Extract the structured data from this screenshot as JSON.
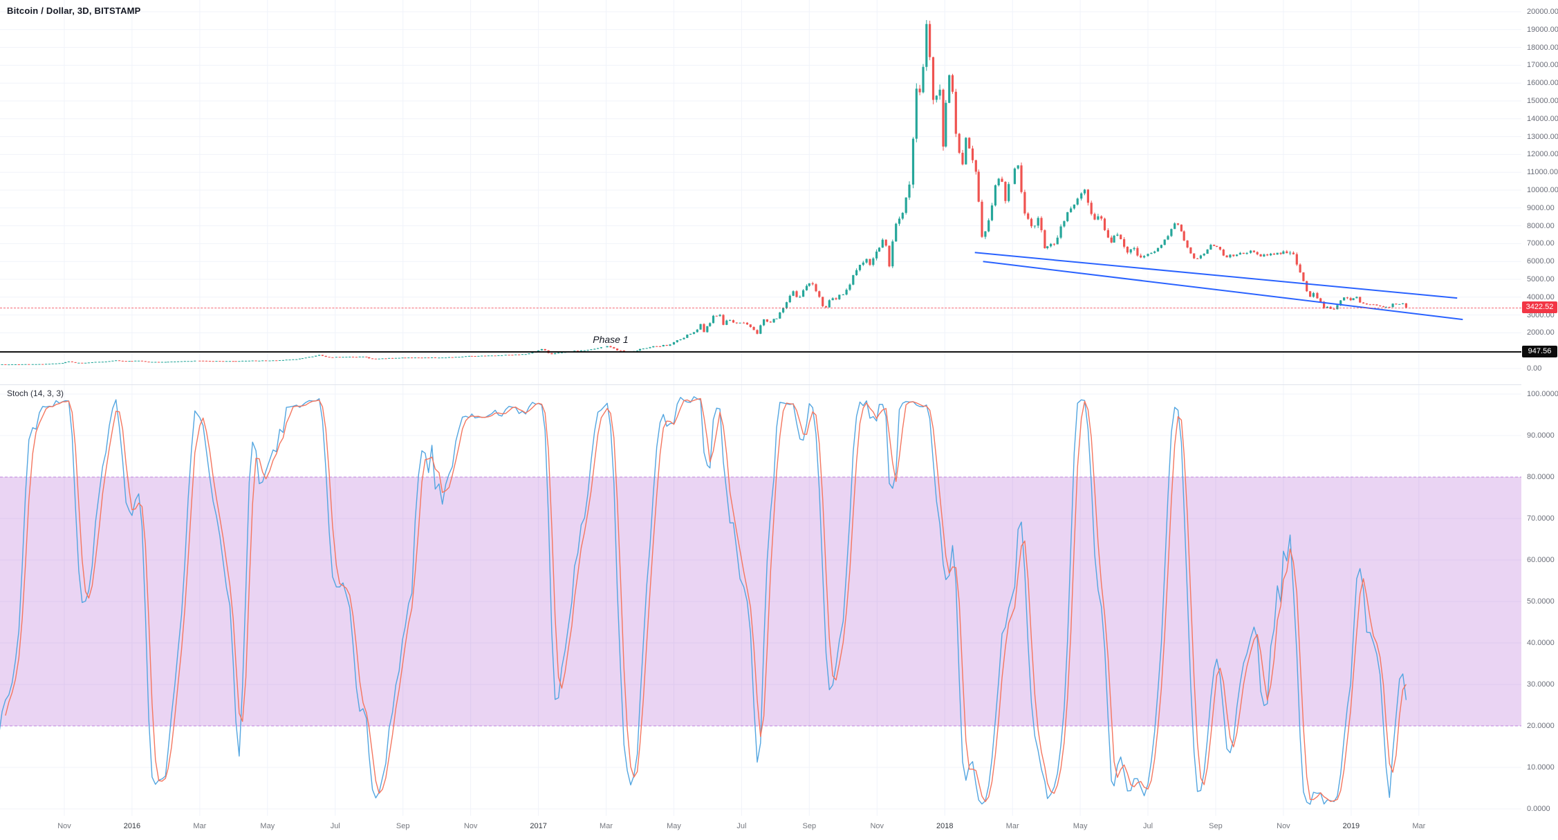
{
  "header": {
    "symbol_title": "Bitcoin / Dollar, 3D, BITSTAMP"
  },
  "indicator_pane": {
    "label": "Stoch (14, 3, 3)"
  },
  "annotations": {
    "phase_label": "Phase 1",
    "phase_position_date": "2017-03-05",
    "level_line": {
      "price": 947.56,
      "label": "947.56",
      "color": "#0c0c0c"
    },
    "last_price": {
      "value": 3422.52,
      "label": "3422.52",
      "color": "#f23645"
    }
  },
  "colors": {
    "up": "#26a69a",
    "down": "#ef5350",
    "trendline": "#2962ff",
    "stoch_k": "#52a5e0",
    "stoch_d": "#f4765f",
    "band_fill": "rgba(160,60,200,0.22)",
    "band_edge": "rgba(160,60,200,0.55)",
    "grid": "#f0f3fa",
    "axis_text": "#6a6d78",
    "axis_border": "#e0e3eb"
  },
  "price_axis": {
    "ticks": [
      {
        "v": 20000,
        "label": "20000.00"
      },
      {
        "v": 19000,
        "label": "19000.00"
      },
      {
        "v": 18000,
        "label": "18000.00"
      },
      {
        "v": 17000,
        "label": "17000.00"
      },
      {
        "v": 16000,
        "label": "16000.00"
      },
      {
        "v": 15000,
        "label": "15000.00"
      },
      {
        "v": 14000,
        "label": "14000.00"
      },
      {
        "v": 13000,
        "label": "13000.00"
      },
      {
        "v": 12000,
        "label": "12000.00"
      },
      {
        "v": 11000,
        "label": "11000.00"
      },
      {
        "v": 10000,
        "label": "10000.00"
      },
      {
        "v": 9000,
        "label": "9000.00"
      },
      {
        "v": 8000,
        "label": "8000.00"
      },
      {
        "v": 7000,
        "label": "7000.00"
      },
      {
        "v": 6000,
        "label": "6000.00"
      },
      {
        "v": 5000,
        "label": "5000.00"
      },
      {
        "v": 4000,
        "label": "4000.00"
      },
      {
        "v": 3000,
        "label": "3000.00"
      },
      {
        "v": 2000,
        "label": "2000.00"
      },
      {
        "v": 0,
        "label": "0.00"
      }
    ]
  },
  "stoch_axis": {
    "ticks": [
      {
        "v": 100,
        "label": "100.0000"
      },
      {
        "v": 90,
        "label": "90.0000"
      },
      {
        "v": 80,
        "label": "80.0000"
      },
      {
        "v": 70,
        "label": "70.0000"
      },
      {
        "v": 60,
        "label": "60.0000"
      },
      {
        "v": 50,
        "label": "50.0000"
      },
      {
        "v": 40,
        "label": "40.0000"
      },
      {
        "v": 30,
        "label": "30.0000"
      },
      {
        "v": 20,
        "label": "20.0000"
      },
      {
        "v": 10,
        "label": "10.0000"
      },
      {
        "v": 0,
        "label": "0.0000"
      }
    ]
  },
  "time_axis": {
    "ticks": [
      {
        "label": "Nov",
        "date": "2015-11-01",
        "year": false
      },
      {
        "label": "2016",
        "date": "2016-01-01",
        "year": true
      },
      {
        "label": "Mar",
        "date": "2016-03-01",
        "year": false
      },
      {
        "label": "May",
        "date": "2016-05-01",
        "year": false
      },
      {
        "label": "Jul",
        "date": "2016-07-01",
        "year": false
      },
      {
        "label": "Sep",
        "date": "2016-09-01",
        "year": false
      },
      {
        "label": "Nov",
        "date": "2016-11-01",
        "year": false
      },
      {
        "label": "2017",
        "date": "2017-01-01",
        "year": true
      },
      {
        "label": "Mar",
        "date": "2017-03-01",
        "year": false
      },
      {
        "label": "May",
        "date": "2017-05-01",
        "year": false
      },
      {
        "label": "Jul",
        "date": "2017-07-01",
        "year": false
      },
      {
        "label": "Sep",
        "date": "2017-09-01",
        "year": false
      },
      {
        "label": "Nov",
        "date": "2017-11-01",
        "year": false
      },
      {
        "label": "2018",
        "date": "2018-01-01",
        "year": true
      },
      {
        "label": "Mar",
        "date": "2018-03-01",
        "year": false
      },
      {
        "label": "May",
        "date": "2018-05-01",
        "year": false
      },
      {
        "label": "Jul",
        "date": "2018-07-01",
        "year": false
      },
      {
        "label": "Sep",
        "date": "2018-09-01",
        "year": false
      },
      {
        "label": "Nov",
        "date": "2018-11-01",
        "year": false
      },
      {
        "label": "2019",
        "date": "2019-01-01",
        "year": true
      },
      {
        "label": "Mar",
        "date": "2019-03-01",
        "year": false
      }
    ]
  },
  "chart_data": {
    "type": "candlestick",
    "title": "Bitcoin / Dollar, 3D, BITSTAMP",
    "interval": "3D",
    "exchange": "BITSTAMP",
    "price_range": [
      0,
      20000
    ],
    "last_price": 3422.52,
    "level_line_price": 947.56,
    "bar_interval_days": 3,
    "series_start": "2015-07-20",
    "series_end": "2019-02-20",
    "indicator": {
      "name": "Stochastic",
      "params": [
        14,
        3,
        3
      ],
      "range": [
        0,
        100
      ],
      "band": [
        20,
        80
      ],
      "legend": "Stoch (14, 3, 3)"
    },
    "stoch_band": [
      20,
      80
    ],
    "trendlines": [
      {
        "from": [
          "2018-01-28",
          6500
        ],
        "to": [
          "2019-04-05",
          3950
        ]
      },
      {
        "from": [
          "2018-02-05",
          6000
        ],
        "to": [
          "2019-04-10",
          2750
        ]
      }
    ],
    "price_anchors": [
      [
        "2015-07-20",
        278
      ],
      [
        "2015-08-02",
        282
      ],
      [
        "2015-08-18",
        225
      ],
      [
        "2015-08-25",
        211
      ],
      [
        "2015-09-05",
        230
      ],
      [
        "2015-09-21",
        232
      ],
      [
        "2015-10-01",
        240
      ],
      [
        "2015-10-14",
        253
      ],
      [
        "2015-10-26",
        285
      ],
      [
        "2015-11-01",
        325
      ],
      [
        "2015-11-04",
        400
      ],
      [
        "2015-11-11",
        315
      ],
      [
        "2015-11-20",
        322
      ],
      [
        "2015-11-30",
        370
      ],
      [
        "2015-12-08",
        392
      ],
      [
        "2015-12-16",
        455
      ],
      [
        "2015-12-24",
        415
      ],
      [
        "2016-01-07",
        432
      ],
      [
        "2016-01-16",
        368
      ],
      [
        "2016-01-31",
        372
      ],
      [
        "2016-02-14",
        404
      ],
      [
        "2016-02-29",
        435
      ],
      [
        "2016-03-15",
        416
      ],
      [
        "2016-04-01",
        417
      ],
      [
        "2016-04-20",
        442
      ],
      [
        "2016-05-10",
        452
      ],
      [
        "2016-05-28",
        528
      ],
      [
        "2016-06-13",
        700
      ],
      [
        "2016-06-17",
        758
      ],
      [
        "2016-06-24",
        628
      ],
      [
        "2016-07-10",
        652
      ],
      [
        "2016-07-28",
        655
      ],
      [
        "2016-08-02",
        547
      ],
      [
        "2016-08-15",
        570
      ],
      [
        "2016-09-01",
        605
      ],
      [
        "2016-09-20",
        609
      ],
      [
        "2016-10-10",
        618
      ],
      [
        "2016-10-28",
        688
      ],
      [
        "2016-11-15",
        712
      ],
      [
        "2016-12-01",
        754
      ],
      [
        "2016-12-20",
        795
      ],
      [
        "2016-12-31",
        958
      ],
      [
        "2017-01-04",
        1120
      ],
      [
        "2017-01-12",
        792
      ],
      [
        "2017-01-20",
        895
      ],
      [
        "2017-02-01",
        962
      ],
      [
        "2017-02-20",
        1058
      ],
      [
        "2017-03-03",
        1268
      ],
      [
        "2017-03-12",
        1015
      ],
      [
        "2017-03-18",
        952
      ],
      [
        "2017-03-25",
        968
      ],
      [
        "2017-04-10",
        1195
      ],
      [
        "2017-04-28",
        1330
      ],
      [
        "2017-05-10",
        1762
      ],
      [
        "2017-05-22",
        2150
      ],
      [
        "2017-05-25",
        2480
      ],
      [
        "2017-05-28",
        2060
      ],
      [
        "2017-06-06",
        2868
      ],
      [
        "2017-06-12",
        2958
      ],
      [
        "2017-06-15",
        2455
      ],
      [
        "2017-06-20",
        2748
      ],
      [
        "2017-06-27",
        2552
      ],
      [
        "2017-07-05",
        2601
      ],
      [
        "2017-07-16",
        1938
      ],
      [
        "2017-07-20",
        2840
      ],
      [
        "2017-07-25",
        2578
      ],
      [
        "2017-08-01",
        2782
      ],
      [
        "2017-08-08",
        3395
      ],
      [
        "2017-08-17",
        4345
      ],
      [
        "2017-08-22",
        3958
      ],
      [
        "2017-09-01",
        4892
      ],
      [
        "2017-09-08",
        4248
      ],
      [
        "2017-09-14",
        3252
      ],
      [
        "2017-09-20",
        3948
      ],
      [
        "2017-09-25",
        3902
      ],
      [
        "2017-10-05",
        4348
      ],
      [
        "2017-10-13",
        5648
      ],
      [
        "2017-10-21",
        6052
      ],
      [
        "2017-10-25",
        5748
      ],
      [
        "2017-11-01",
        6752
      ],
      [
        "2017-11-08",
        7448
      ],
      [
        "2017-11-12",
        5902
      ],
      [
        "2017-11-17",
        7798
      ],
      [
        "2017-11-25",
        8752
      ],
      [
        "2017-12-01",
        10898
      ],
      [
        "2017-12-07",
        16898
      ],
      [
        "2017-12-10",
        15102
      ],
      [
        "2017-12-16",
        19498
      ],
      [
        "2017-12-22",
        13798
      ],
      [
        "2017-12-26",
        15998
      ],
      [
        "2017-12-30",
        12802
      ],
      [
        "2018-01-06",
        17098
      ],
      [
        "2018-01-11",
        13302
      ],
      [
        "2018-01-16",
        11198
      ],
      [
        "2018-01-20",
        12798
      ],
      [
        "2018-01-28",
        11402
      ],
      [
        "2018-02-05",
        6948
      ],
      [
        "2018-02-12",
        8848
      ],
      [
        "2018-02-20",
        11198
      ],
      [
        "2018-02-25",
        9602
      ],
      [
        "2018-03-05",
        11498
      ],
      [
        "2018-03-11",
        9102
      ],
      [
        "2018-03-18",
        7898
      ],
      [
        "2018-03-25",
        8502
      ],
      [
        "2018-03-30",
        6848
      ],
      [
        "2018-04-08",
        6948
      ],
      [
        "2018-04-14",
        7998
      ],
      [
        "2018-04-24",
        9352
      ],
      [
        "2018-05-05",
        9848
      ],
      [
        "2018-05-13",
        8452
      ],
      [
        "2018-05-20",
        8248
      ],
      [
        "2018-05-28",
        7202
      ],
      [
        "2018-06-05",
        7598
      ],
      [
        "2018-06-12",
        6548
      ],
      [
        "2018-06-18",
        6702
      ],
      [
        "2018-06-25",
        6148
      ],
      [
        "2018-07-01",
        6352
      ],
      [
        "2018-07-09",
        6698
      ],
      [
        "2018-07-18",
        7352
      ],
      [
        "2018-07-25",
        8198
      ],
      [
        "2018-07-31",
        7748
      ],
      [
        "2018-08-08",
        6448
      ],
      [
        "2018-08-14",
        6048
      ],
      [
        "2018-08-20",
        6448
      ],
      [
        "2018-08-28",
        6998
      ],
      [
        "2018-09-05",
        6698
      ],
      [
        "2018-09-09",
        6248
      ],
      [
        "2018-09-18",
        6352
      ],
      [
        "2018-09-25",
        6448
      ],
      [
        "2018-10-02",
        6548
      ],
      [
        "2018-10-11",
        6248
      ],
      [
        "2018-10-20",
        6448
      ],
      [
        "2018-10-28",
        6478
      ],
      [
        "2018-11-04",
        6398
      ],
      [
        "2018-11-10",
        6378
      ],
      [
        "2018-11-14",
        5748
      ],
      [
        "2018-11-19",
        4898
      ],
      [
        "2018-11-25",
        3948
      ],
      [
        "2018-11-29",
        4248
      ],
      [
        "2018-12-06",
        3498
      ],
      [
        "2018-12-15",
        3222
      ],
      [
        "2018-12-24",
        4048
      ],
      [
        "2018-12-31",
        3748
      ],
      [
        "2019-01-06",
        4048
      ],
      [
        "2019-01-10",
        3622
      ],
      [
        "2019-01-20",
        3578
      ],
      [
        "2019-01-28",
        3448
      ],
      [
        "2019-02-06",
        3398
      ],
      [
        "2019-02-08",
        3648
      ],
      [
        "2019-02-17",
        3608
      ],
      [
        "2019-02-20",
        3422.52
      ]
    ]
  }
}
